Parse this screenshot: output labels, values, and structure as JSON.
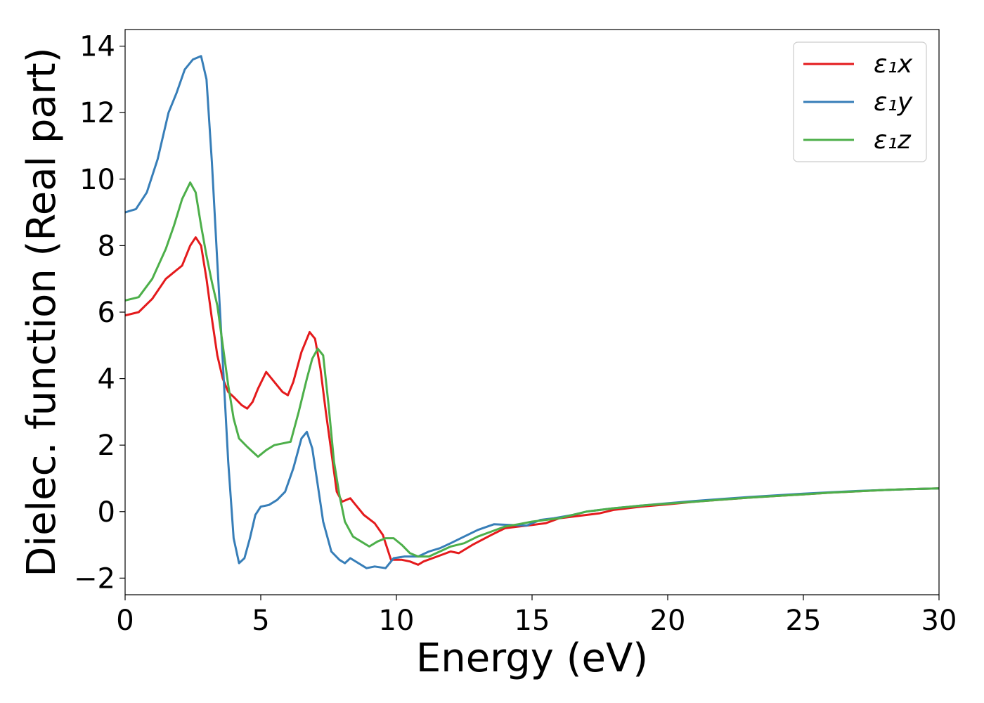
{
  "chart_data": {
    "type": "line",
    "xlabel": "Energy (eV)",
    "ylabel": "Dielec. function (Real part)",
    "xlim": [
      0,
      30
    ],
    "ylim": [
      -2.5,
      14.5
    ],
    "xticks": [
      0,
      5,
      10,
      15,
      20,
      25,
      30
    ],
    "yticks": [
      -2,
      0,
      2,
      4,
      6,
      8,
      10,
      12,
      14
    ],
    "xtick_labels": [
      "0",
      "5",
      "10",
      "15",
      "20",
      "25",
      "30"
    ],
    "ytick_labels": [
      "−2",
      "0",
      "2",
      "4",
      "6",
      "8",
      "10",
      "12",
      "14"
    ],
    "grid": false,
    "legend_position": "top-right",
    "series": [
      {
        "name": "ε₁x",
        "color": "#e41a1c",
        "points": [
          [
            0,
            5.9
          ],
          [
            0.5,
            6.0
          ],
          [
            1.0,
            6.4
          ],
          [
            1.5,
            7.0
          ],
          [
            1.8,
            7.2
          ],
          [
            2.1,
            7.4
          ],
          [
            2.4,
            8.0
          ],
          [
            2.6,
            8.25
          ],
          [
            2.8,
            8.0
          ],
          [
            3.0,
            7.0
          ],
          [
            3.2,
            5.8
          ],
          [
            3.4,
            4.7
          ],
          [
            3.6,
            4.0
          ],
          [
            3.8,
            3.6
          ],
          [
            4.0,
            3.45
          ],
          [
            4.3,
            3.2
          ],
          [
            4.5,
            3.1
          ],
          [
            4.7,
            3.3
          ],
          [
            4.9,
            3.7
          ],
          [
            5.2,
            4.2
          ],
          [
            5.5,
            3.9
          ],
          [
            5.8,
            3.6
          ],
          [
            6.0,
            3.5
          ],
          [
            6.2,
            3.9
          ],
          [
            6.5,
            4.8
          ],
          [
            6.8,
            5.4
          ],
          [
            7.0,
            5.2
          ],
          [
            7.2,
            4.3
          ],
          [
            7.4,
            3.0
          ],
          [
            7.6,
            1.8
          ],
          [
            7.8,
            0.6
          ],
          [
            8.0,
            0.3
          ],
          [
            8.3,
            0.4
          ],
          [
            8.5,
            0.2
          ],
          [
            8.8,
            -0.1
          ],
          [
            9.2,
            -0.35
          ],
          [
            9.5,
            -0.7
          ],
          [
            9.8,
            -1.45
          ],
          [
            10.2,
            -1.45
          ],
          [
            10.5,
            -1.5
          ],
          [
            10.8,
            -1.6
          ],
          [
            11.0,
            -1.5
          ],
          [
            11.5,
            -1.35
          ],
          [
            12.0,
            -1.2
          ],
          [
            12.3,
            -1.25
          ],
          [
            12.8,
            -1.0
          ],
          [
            13.5,
            -0.7
          ],
          [
            14.0,
            -0.5
          ],
          [
            14.5,
            -0.45
          ],
          [
            15.0,
            -0.4
          ],
          [
            15.5,
            -0.35
          ],
          [
            16.0,
            -0.2
          ],
          [
            16.5,
            -0.15
          ],
          [
            17.0,
            -0.1
          ],
          [
            17.5,
            -0.05
          ],
          [
            18,
            0.05
          ],
          [
            19,
            0.15
          ],
          [
            20,
            0.22
          ],
          [
            21,
            0.3
          ],
          [
            22,
            0.36
          ],
          [
            23,
            0.42
          ],
          [
            24,
            0.47
          ],
          [
            25,
            0.52
          ],
          [
            26,
            0.57
          ],
          [
            27,
            0.61
          ],
          [
            28,
            0.65
          ],
          [
            29,
            0.68
          ],
          [
            30,
            0.7
          ]
        ]
      },
      {
        "name": "ε₁y",
        "color": "#377eb8",
        "points": [
          [
            0,
            9.0
          ],
          [
            0.4,
            9.1
          ],
          [
            0.8,
            9.6
          ],
          [
            1.2,
            10.6
          ],
          [
            1.6,
            12.0
          ],
          [
            1.9,
            12.6
          ],
          [
            2.2,
            13.3
          ],
          [
            2.5,
            13.6
          ],
          [
            2.8,
            13.7
          ],
          [
            3.0,
            13.0
          ],
          [
            3.2,
            10.5
          ],
          [
            3.4,
            7.5
          ],
          [
            3.6,
            4.5
          ],
          [
            3.8,
            1.5
          ],
          [
            4.0,
            -0.8
          ],
          [
            4.2,
            -1.55
          ],
          [
            4.4,
            -1.4
          ],
          [
            4.6,
            -0.8
          ],
          [
            4.8,
            -0.1
          ],
          [
            5.0,
            0.15
          ],
          [
            5.3,
            0.2
          ],
          [
            5.6,
            0.35
          ],
          [
            5.9,
            0.6
          ],
          [
            6.2,
            1.3
          ],
          [
            6.5,
            2.2
          ],
          [
            6.7,
            2.4
          ],
          [
            6.9,
            1.9
          ],
          [
            7.1,
            0.8
          ],
          [
            7.3,
            -0.3
          ],
          [
            7.6,
            -1.2
          ],
          [
            7.9,
            -1.45
          ],
          [
            8.1,
            -1.55
          ],
          [
            8.3,
            -1.4
          ],
          [
            8.6,
            -1.55
          ],
          [
            8.9,
            -1.7
          ],
          [
            9.2,
            -1.65
          ],
          [
            9.6,
            -1.7
          ],
          [
            9.9,
            -1.4
          ],
          [
            10.3,
            -1.35
          ],
          [
            10.8,
            -1.35
          ],
          [
            11.2,
            -1.2
          ],
          [
            11.6,
            -1.1
          ],
          [
            12.0,
            -0.95
          ],
          [
            12.5,
            -0.75
          ],
          [
            13.0,
            -0.55
          ],
          [
            13.6,
            -0.38
          ],
          [
            14.2,
            -0.4
          ],
          [
            14.8,
            -0.42
          ],
          [
            15.3,
            -0.25
          ],
          [
            15.8,
            -0.2
          ],
          [
            16.5,
            -0.1
          ],
          [
            17,
            0.0
          ],
          [
            18,
            0.1
          ],
          [
            19,
            0.18
          ],
          [
            20,
            0.25
          ],
          [
            21,
            0.32
          ],
          [
            22,
            0.38
          ],
          [
            23,
            0.44
          ],
          [
            24,
            0.49
          ],
          [
            25,
            0.54
          ],
          [
            26,
            0.58
          ],
          [
            27,
            0.62
          ],
          [
            28,
            0.65
          ],
          [
            29,
            0.68
          ],
          [
            30,
            0.7
          ]
        ]
      },
      {
        "name": "ε₁z",
        "color": "#4daf4a",
        "points": [
          [
            0,
            6.35
          ],
          [
            0.5,
            6.45
          ],
          [
            1.0,
            7.0
          ],
          [
            1.5,
            7.9
          ],
          [
            1.8,
            8.6
          ],
          [
            2.1,
            9.4
          ],
          [
            2.4,
            9.9
          ],
          [
            2.6,
            9.6
          ],
          [
            2.8,
            8.6
          ],
          [
            3.0,
            7.7
          ],
          [
            3.2,
            6.9
          ],
          [
            3.4,
            6.2
          ],
          [
            3.6,
            5.0
          ],
          [
            3.8,
            3.8
          ],
          [
            4.0,
            2.8
          ],
          [
            4.2,
            2.2
          ],
          [
            4.5,
            1.95
          ],
          [
            4.7,
            1.8
          ],
          [
            4.9,
            1.65
          ],
          [
            5.2,
            1.85
          ],
          [
            5.5,
            2.0
          ],
          [
            5.8,
            2.05
          ],
          [
            6.1,
            2.1
          ],
          [
            6.4,
            3.0
          ],
          [
            6.7,
            4.0
          ],
          [
            6.9,
            4.6
          ],
          [
            7.1,
            4.9
          ],
          [
            7.3,
            4.7
          ],
          [
            7.5,
            3.2
          ],
          [
            7.7,
            1.5
          ],
          [
            7.9,
            0.5
          ],
          [
            8.1,
            -0.3
          ],
          [
            8.4,
            -0.75
          ],
          [
            8.7,
            -0.9
          ],
          [
            9.0,
            -1.05
          ],
          [
            9.3,
            -0.9
          ],
          [
            9.6,
            -0.8
          ],
          [
            9.9,
            -0.8
          ],
          [
            10.2,
            -1.0
          ],
          [
            10.5,
            -1.25
          ],
          [
            10.8,
            -1.35
          ],
          [
            11.2,
            -1.35
          ],
          [
            11.6,
            -1.2
          ],
          [
            12.0,
            -1.05
          ],
          [
            12.5,
            -0.95
          ],
          [
            13.0,
            -0.75
          ],
          [
            13.5,
            -0.6
          ],
          [
            14.0,
            -0.45
          ],
          [
            14.5,
            -0.38
          ],
          [
            15.0,
            -0.3
          ],
          [
            15.5,
            -0.25
          ],
          [
            16.0,
            -0.2
          ],
          [
            16.5,
            -0.1
          ],
          [
            17,
            0.0
          ],
          [
            18,
            0.1
          ],
          [
            19,
            0.18
          ],
          [
            20,
            0.24
          ],
          [
            21,
            0.3
          ],
          [
            22,
            0.36
          ],
          [
            23,
            0.42
          ],
          [
            24,
            0.47
          ],
          [
            25,
            0.52
          ],
          [
            26,
            0.57
          ],
          [
            27,
            0.61
          ],
          [
            28,
            0.65
          ],
          [
            29,
            0.68
          ],
          [
            30,
            0.7
          ]
        ]
      }
    ]
  }
}
